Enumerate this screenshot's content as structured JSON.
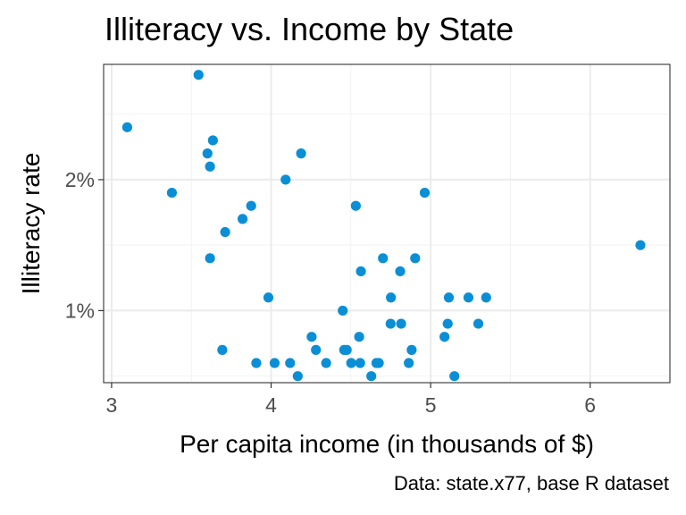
{
  "chart_data": {
    "type": "scatter",
    "title": "Illiteracy vs. Income by State",
    "caption": "Data: state.x77, base R dataset",
    "xlabel": "Per capita income (in thousands of $)",
    "ylabel": "Illiteracy rate",
    "xlim": [
      2.95,
      6.5
    ],
    "ylim": [
      0.45,
      2.88
    ],
    "x_ticks": [
      3,
      4,
      5,
      6
    ],
    "x_tick_labels": [
      "3",
      "4",
      "5",
      "6"
    ],
    "y_ticks": [
      1,
      2
    ],
    "y_tick_labels": [
      "1%",
      "2%"
    ],
    "grid": true,
    "point_color": "#0a8fd6",
    "points": [
      {
        "x": 3.098,
        "y": 2.4
      },
      {
        "x": 3.545,
        "y": 2.8
      },
      {
        "x": 3.378,
        "y": 1.9
      },
      {
        "x": 3.601,
        "y": 2.2
      },
      {
        "x": 3.617,
        "y": 2.1
      },
      {
        "x": 3.635,
        "y": 2.3
      },
      {
        "x": 3.617,
        "y": 1.4
      },
      {
        "x": 3.821,
        "y": 1.7
      },
      {
        "x": 3.875,
        "y": 1.8
      },
      {
        "x": 3.712,
        "y": 1.6
      },
      {
        "x": 4.091,
        "y": 2.0
      },
      {
        "x": 4.188,
        "y": 2.2
      },
      {
        "x": 3.983,
        "y": 1.1
      },
      {
        "x": 3.694,
        "y": 0.7
      },
      {
        "x": 3.907,
        "y": 0.6
      },
      {
        "x": 4.022,
        "y": 0.6
      },
      {
        "x": 4.119,
        "y": 0.6
      },
      {
        "x": 4.167,
        "y": 0.5
      },
      {
        "x": 4.254,
        "y": 0.8
      },
      {
        "x": 4.281,
        "y": 0.7
      },
      {
        "x": 4.345,
        "y": 0.6
      },
      {
        "x": 4.449,
        "y": 1.0
      },
      {
        "x": 4.458,
        "y": 0.7
      },
      {
        "x": 4.474,
        "y": 0.7
      },
      {
        "x": 4.502,
        "y": 0.6
      },
      {
        "x": 4.558,
        "y": 0.6
      },
      {
        "x": 4.552,
        "y": 0.8
      },
      {
        "x": 4.531,
        "y": 1.8
      },
      {
        "x": 4.563,
        "y": 1.3
      },
      {
        "x": 4.628,
        "y": 0.5
      },
      {
        "x": 4.66,
        "y": 0.6
      },
      {
        "x": 4.675,
        "y": 0.6
      },
      {
        "x": 4.701,
        "y": 1.4
      },
      {
        "x": 4.751,
        "y": 1.1
      },
      {
        "x": 4.749,
        "y": 0.9
      },
      {
        "x": 4.815,
        "y": 0.9
      },
      {
        "x": 4.809,
        "y": 1.3
      },
      {
        "x": 4.863,
        "y": 0.6
      },
      {
        "x": 4.881,
        "y": 0.7
      },
      {
        "x": 4.903,
        "y": 1.4
      },
      {
        "x": 4.963,
        "y": 1.9
      },
      {
        "x": 5.087,
        "y": 0.8
      },
      {
        "x": 5.107,
        "y": 0.9
      },
      {
        "x": 5.114,
        "y": 1.1
      },
      {
        "x": 5.149,
        "y": 0.5
      },
      {
        "x": 5.237,
        "y": 1.1
      },
      {
        "x": 5.299,
        "y": 0.9
      },
      {
        "x": 5.348,
        "y": 1.1
      },
      {
        "x": 6.315,
        "y": 1.5
      }
    ]
  }
}
